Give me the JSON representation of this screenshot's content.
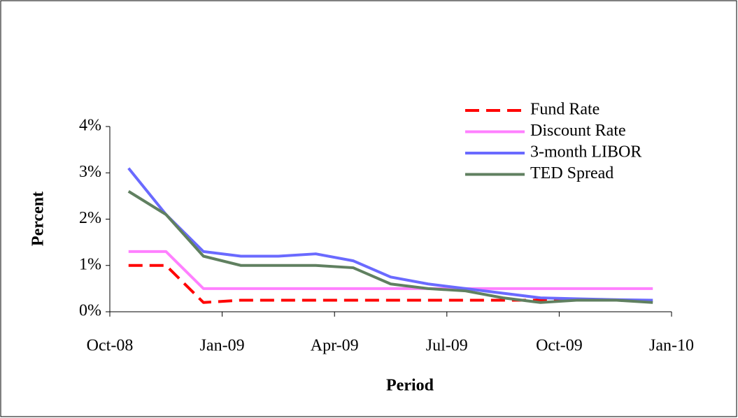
{
  "chart_data": {
    "type": "line",
    "xlabel": "Period",
    "ylabel": "Percent",
    "x": [
      "2008-10",
      "2008-11",
      "2008-12",
      "2009-01",
      "2009-02",
      "2009-03",
      "2009-04",
      "2009-05",
      "2009-06",
      "2009-07",
      "2009-08",
      "2009-09",
      "2009-10",
      "2009-11",
      "2009-12"
    ],
    "series": [
      {
        "name": "Fund Rate",
        "color": "#ff0000",
        "dash": true,
        "values": [
          1.0,
          1.0,
          0.2,
          0.25,
          0.25,
          0.25,
          0.25,
          0.25,
          0.25,
          0.25,
          0.25,
          0.25,
          0.25,
          0.25,
          0.25
        ]
      },
      {
        "name": "Discount Rate",
        "color": "#ff80ff",
        "dash": false,
        "values": [
          1.3,
          1.3,
          0.5,
          0.5,
          0.5,
          0.5,
          0.5,
          0.5,
          0.5,
          0.5,
          0.5,
          0.5,
          0.5,
          0.5,
          0.5
        ]
      },
      {
        "name": "3-month LIBOR",
        "color": "#6a6aff",
        "dash": false,
        "values": [
          3.1,
          2.1,
          1.3,
          1.2,
          1.2,
          1.25,
          1.1,
          0.75,
          0.6,
          0.5,
          0.4,
          0.3,
          0.28,
          0.26,
          0.25
        ]
      },
      {
        "name": "TED Spread",
        "color": "#608060",
        "dash": false,
        "values": [
          2.6,
          2.1,
          1.2,
          1.0,
          1.0,
          1.0,
          0.95,
          0.6,
          0.5,
          0.45,
          0.3,
          0.2,
          0.25,
          0.25,
          0.2
        ]
      }
    ],
    "xlim": [
      "2008-10",
      "2010-01"
    ],
    "xticks": [
      {
        "value": "2008-10",
        "label": "Oct-08"
      },
      {
        "value": "2009-01",
        "label": "Jan-09"
      },
      {
        "value": "2009-04",
        "label": "Apr-09"
      },
      {
        "value": "2009-07",
        "label": "Jul-09"
      },
      {
        "value": "2009-10",
        "label": "Oct-09"
      },
      {
        "value": "2010-01",
        "label": "Jan-10"
      }
    ],
    "ylim": [
      0,
      4
    ],
    "yticks": [
      {
        "value": 0,
        "label": "0%"
      },
      {
        "value": 1,
        "label": "1%"
      },
      {
        "value": 2,
        "label": "2%"
      },
      {
        "value": 3,
        "label": "3%"
      },
      {
        "value": 4,
        "label": "4%"
      }
    ],
    "legend": "top-right"
  }
}
